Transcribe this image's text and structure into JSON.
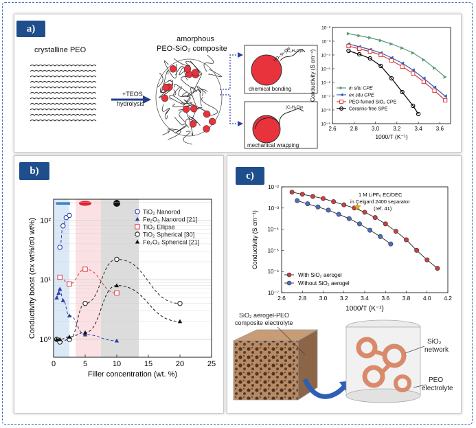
{
  "colors": {
    "frame": "#3a6fc4",
    "badge": "#1f4e8c",
    "polymer_red": "#e8323c",
    "arrow_blue": "#1f3f8a",
    "dotted_blue": "#2a3ea8"
  },
  "panel_a": {
    "label": "a)",
    "crystalline": "crystalline PEO",
    "amorphous_line1": "amorphous",
    "amorphous_line2": "PEO-SiO₂ composite",
    "teos_line1": "+TEOS",
    "teos_line2": "hydrolysis",
    "box1_caption": "chemical bonding",
    "box2_caption": "mechanical wrapping",
    "chain_label": "(C₂H₄O)n",
    "bond_label": "HO–Si–OH"
  },
  "panel_b": {
    "label": "b)"
  },
  "panel_c": {
    "label": "c)",
    "annotation_line1": "1 M LiPF₆ EC/DEC",
    "annotation_line2": "in Celgard 2400 separator",
    "annotation_line3": "(ref. 41)",
    "cube_label_line1": "SiO₂ aerogel-PEO",
    "cube_label_line2": "composite electrolyte",
    "network_label_line1": "SiO₂",
    "network_label_line2": "network",
    "peo_label_line1": "PEO",
    "peo_label_line2": "electrolyte"
  },
  "chart_data": [
    {
      "type": "line",
      "panel": "a",
      "xlabel": "1000/T (K⁻¹)",
      "ylabel": "Conductivity (S cm⁻¹)",
      "xlim": [
        2.6,
        3.7
      ],
      "ylim_log10": [
        -9,
        -2
      ],
      "xticks": [
        "2.6",
        "2.8",
        "3.0",
        "3.2",
        "3.4",
        "3.6"
      ],
      "yticks": [
        "10⁻²",
        "10⁻³",
        "10⁻⁴",
        "10⁻⁵",
        "10⁻⁶",
        "10⁻⁷",
        "10⁻⁸",
        "10⁻⁹"
      ],
      "legend_position": "bottom-left",
      "series": [
        {
          "name": "in situ CPE",
          "color": "#5a9a78",
          "marker": "triangle-right",
          "x": [
            2.75,
            2.85,
            2.95,
            3.05,
            3.15,
            3.25,
            3.35,
            3.45,
            3.55,
            3.65
          ],
          "log10_y": [
            -2.45,
            -2.6,
            -2.75,
            -2.95,
            -3.2,
            -3.5,
            -3.85,
            -4.35,
            -4.95,
            -5.6
          ]
        },
        {
          "name": "ex situ CPE",
          "color": "#3a5fb0",
          "marker": "triangle-left",
          "x": [
            2.75,
            2.85,
            2.95,
            3.05,
            3.15,
            3.25,
            3.35,
            3.45,
            3.55,
            3.65
          ],
          "log10_y": [
            -3.2,
            -3.4,
            -3.6,
            -3.85,
            -4.2,
            -4.6,
            -5.1,
            -5.7,
            -6.35,
            -7.0
          ]
        },
        {
          "name": "PEO-fumed SiO₂ CPE",
          "color": "#d83a3a",
          "marker": "square",
          "x": [
            2.75,
            2.85,
            2.95,
            3.05,
            3.15,
            3.25,
            3.35,
            3.45,
            3.55,
            3.65
          ],
          "log10_y": [
            -3.35,
            -3.55,
            -3.75,
            -4.0,
            -4.4,
            -4.85,
            -5.35,
            -5.95,
            -6.6,
            -7.3
          ]
        },
        {
          "name": "Ceramic-free SPE",
          "color": "#000000",
          "marker": "circle",
          "x": [
            2.75,
            2.85,
            2.95,
            3.05,
            3.15,
            3.25,
            3.35,
            3.4
          ],
          "log10_y": [
            -3.7,
            -3.95,
            -4.25,
            -4.8,
            -5.7,
            -6.7,
            -7.7,
            -8.3
          ]
        }
      ]
    },
    {
      "type": "scatter",
      "panel": "b",
      "xlabel": "Filler concentration (wt. %)",
      "ylabel": "Conductivity boost (σx wt%/σ0 wt%)",
      "xlim": [
        0,
        25
      ],
      "ylim_log10": [
        -0.3,
        2.35
      ],
      "xticks": [
        "0",
        "5",
        "10",
        "15",
        "20",
        "25"
      ],
      "yticks": [
        "10⁰",
        "10¹",
        "10²"
      ],
      "legend_position": "top-right",
      "shaded_regions": [
        {
          "x": [
            0,
            2.5
          ],
          "color": "#dbe9f7"
        },
        {
          "x": [
            3.5,
            7.5
          ],
          "color": "#fbe1e3"
        },
        {
          "x": [
            7.5,
            13.5
          ],
          "color": "#dcdcdc"
        }
      ],
      "series": [
        {
          "name": "TiO₂ Nanorod",
          "color": "#2a3ea8",
          "marker": "circle-open",
          "x": [
            1.0,
            1.5,
            2.0,
            2.5
          ],
          "y": [
            35,
            80,
            110,
            120
          ]
        },
        {
          "name": "Fe₂O₃ Nanorod [21]",
          "color": "#2a3ea8",
          "marker": "triangle-filled",
          "x": [
            0.5,
            0.8,
            1.0,
            1.5,
            2.5,
            5,
            10
          ],
          "y": [
            5,
            6,
            7,
            4.5,
            2.5,
            1.2,
            0.95
          ]
        },
        {
          "name": "TiO₂ Ellipse",
          "color": "#d83a3a",
          "marker": "square-open",
          "x": [
            1.0,
            2.5,
            5,
            10
          ],
          "y": [
            11,
            8.5,
            15,
            6
          ]
        },
        {
          "name": "TiO₂ Spherical [30]",
          "color": "#222222",
          "marker": "circle-open",
          "x": [
            0.5,
            1.0,
            2.5,
            5,
            10,
            20
          ],
          "y": [
            1.0,
            0.9,
            1.0,
            4.0,
            22,
            4.0
          ]
        },
        {
          "name": "Fe₂O₃ Spherical [21]",
          "color": "#111111",
          "marker": "triangle-filled",
          "x": [
            0.5,
            1.0,
            2.5,
            5,
            10,
            20
          ],
          "y": [
            1.0,
            1.0,
            1.1,
            1.3,
            8,
            2
          ]
        }
      ]
    },
    {
      "type": "line",
      "panel": "c",
      "xlabel": "1000/T (K⁻¹)",
      "ylabel": "Conductivity (S cm⁻¹)",
      "xlim": [
        2.6,
        4.2
      ],
      "ylim_log10": [
        -7,
        -2
      ],
      "xticks": [
        "2.6",
        "2.8",
        "3.0",
        "3.2",
        "3.4",
        "3.6",
        "3.8",
        "4.0",
        "4.2"
      ],
      "yticks": [
        "10⁻²",
        "10⁻³",
        "10⁻⁴",
        "10⁻⁵",
        "10⁻⁶",
        "10⁻⁷"
      ],
      "legend_position": "bottom-left",
      "series": [
        {
          "name": "With SiO₂ aerogel",
          "color": "#c94040",
          "marker": "circle-filled",
          "x": [
            2.7,
            2.8,
            2.9,
            3.0,
            3.1,
            3.2,
            3.3,
            3.4,
            3.5,
            3.6,
            3.7,
            3.8,
            3.9,
            4.0,
            4.1
          ],
          "log10_y": [
            -2.25,
            -2.35,
            -2.45,
            -2.55,
            -2.7,
            -2.85,
            -3.0,
            -3.2,
            -3.45,
            -3.75,
            -4.1,
            -4.5,
            -5.0,
            -5.45,
            -5.85
          ]
        },
        {
          "name": "Without SiO₂ aerogel",
          "color": "#4a6fc0",
          "marker": "circle-filled",
          "x": [
            2.75,
            2.85,
            2.95,
            3.05,
            3.15,
            3.25,
            3.35,
            3.45,
            3.55,
            3.65
          ],
          "log10_y": [
            -2.65,
            -2.8,
            -2.95,
            -3.1,
            -3.3,
            -3.5,
            -3.75,
            -4.05,
            -4.35,
            -4.7
          ]
        }
      ],
      "star_marker": {
        "x": 3.33,
        "log10_y": -2.95
      }
    }
  ]
}
